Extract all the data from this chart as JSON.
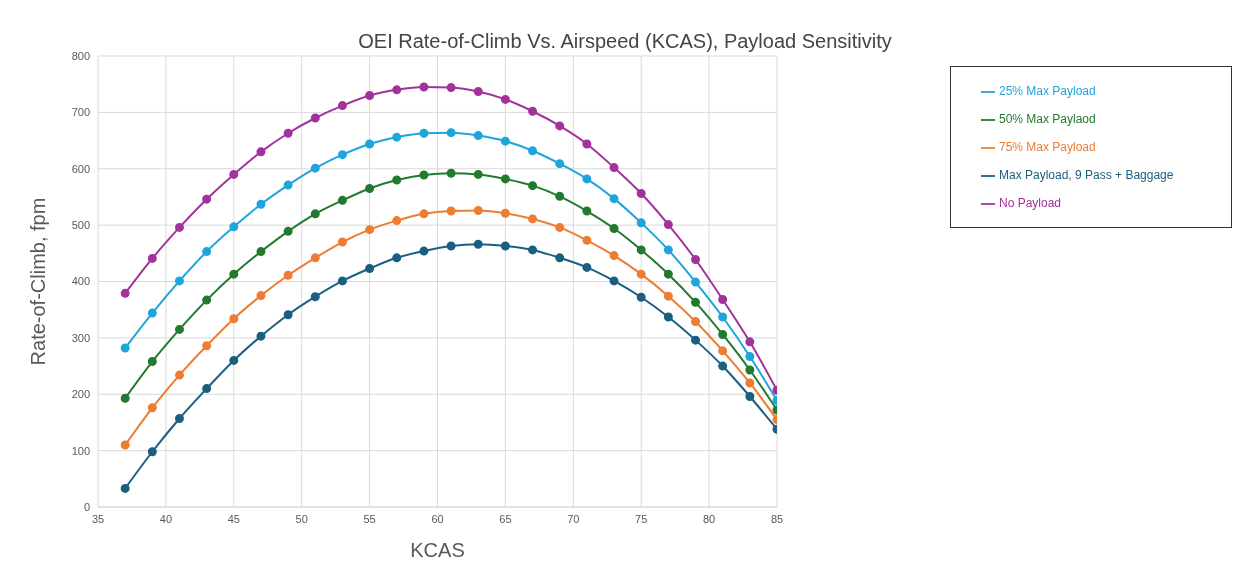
{
  "chart_data": {
    "type": "line",
    "title": "OEI Rate-of-Climb Vs. Airspeed (KCAS), Payload Sensitivity",
    "xlabel": "KCAS",
    "ylabel": "Rate-of-Climb, fpm",
    "x": [
      37,
      39,
      41,
      43,
      45,
      47,
      49,
      51,
      53,
      55,
      57,
      59,
      61,
      63,
      65,
      67,
      69,
      71,
      73,
      75,
      77,
      79,
      81,
      83,
      85
    ],
    "series": [
      {
        "name": "Max Payload, 9 Pass + Baggage",
        "color": "#1b5e80",
        "values": [
          33,
          98,
          157,
          210,
          260,
          303,
          341,
          373,
          401,
          423,
          442,
          454,
          463,
          466,
          463,
          456,
          442,
          425,
          401,
          372,
          337,
          296,
          250,
          196,
          138
        ]
      },
      {
        "name": "75% Max Payload",
        "color": "#ed7d31",
        "values": [
          110,
          176,
          234,
          286,
          334,
          375,
          411,
          442,
          470,
          492,
          508,
          520,
          525,
          526,
          521,
          511,
          496,
          473,
          446,
          413,
          374,
          329,
          277,
          220,
          155
        ]
      },
      {
        "name": "50% Max Paylaod",
        "color": "#217a2e",
        "values": [
          193,
          258,
          315,
          367,
          413,
          453,
          489,
          520,
          544,
          565,
          580,
          589,
          592,
          590,
          582,
          570,
          551,
          525,
          494,
          456,
          413,
          363,
          306,
          243,
          172
        ]
      },
      {
        "name": "25% Max Payload",
        "color": "#1ea5dc",
        "values": [
          282,
          344,
          401,
          453,
          497,
          537,
          571,
          601,
          625,
          644,
          656,
          663,
          664,
          659,
          649,
          632,
          609,
          582,
          547,
          504,
          456,
          399,
          337,
          267,
          189
        ]
      },
      {
        "name": "No Payload",
        "color": "#a3319c",
        "values": [
          379,
          441,
          496,
          546,
          590,
          630,
          663,
          690,
          712,
          730,
          740,
          745,
          744,
          737,
          723,
          702,
          676,
          644,
          602,
          556,
          501,
          439,
          368,
          293,
          207
        ]
      }
    ],
    "xlim": [
      35,
      85
    ],
    "xticks": [
      35,
      40,
      45,
      50,
      55,
      60,
      65,
      70,
      75,
      80,
      85
    ],
    "ylim": [
      0,
      800
    ],
    "yticks": [
      0,
      100,
      200,
      300,
      400,
      500,
      600,
      700,
      800
    ],
    "grid": true,
    "legend": "top right",
    "marker": "circle",
    "line_style": "solid"
  }
}
